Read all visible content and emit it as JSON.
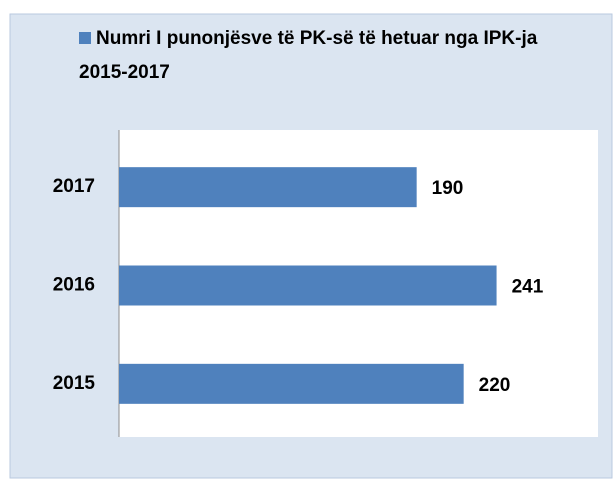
{
  "chart_data": {
    "type": "hbar",
    "categories": [
      "2015",
      "2016",
      "2017"
    ],
    "series": [
      {
        "name": "Numri I punonjësve të PK-së të hetuar nga IPK-ja 2015-2017",
        "color": "#4f81bd",
        "values": [
          220,
          241,
          190
        ]
      }
    ],
    "xlim": [
      0,
      300
    ]
  }
}
